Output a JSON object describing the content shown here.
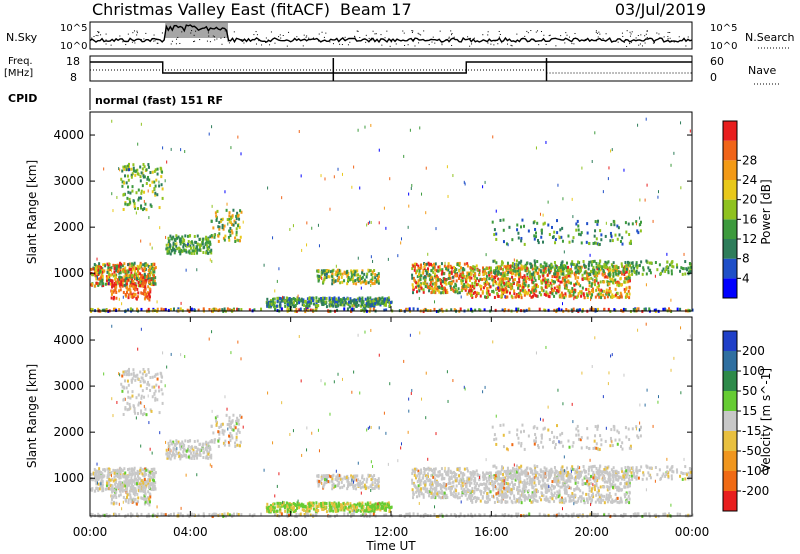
{
  "header": {
    "title": "Christmas Valley East (fitACF)",
    "beam": "Beam 17",
    "date": "03/Jul/2019"
  },
  "noise_panel": {
    "left_label": "N.Sky",
    "right_label": "N.Search",
    "left_ticks": [
      "10^5",
      "10^0"
    ],
    "right_ticks": [
      "10^5",
      "10^0"
    ]
  },
  "freq_panel": {
    "left_label": "Freq.",
    "left_unit": "[MHz]",
    "right_label": "Nave",
    "left_ticks": [
      "18",
      "8"
    ],
    "right_ticks": [
      "60",
      "0"
    ]
  },
  "cpid": {
    "label": "CPID",
    "value": "normal (fast) 151 RF"
  },
  "chart_data": [
    {
      "type": "heatmap",
      "name": "Power",
      "ylabel": "Slant Range [km]",
      "xlabel": "",
      "xlim": [
        "00:00",
        "00:00"
      ],
      "ylim": [
        180,
        4500
      ],
      "yticks": [
        "1000",
        "2000",
        "3000",
        "4000"
      ],
      "colorbar": {
        "label": "Power [dB]",
        "ticks": [
          "4",
          "8",
          "12",
          "16",
          "20",
          "24",
          "28"
        ],
        "colors": [
          "#0000ff",
          "#1f4fc8",
          "#2e7d5a",
          "#3d9a3d",
          "#8fc21f",
          "#e8c81a",
          "#f39a16",
          "#f06418",
          "#e81e1e"
        ]
      }
    },
    {
      "type": "heatmap",
      "name": "Velocity",
      "ylabel": "Slant Range [km]",
      "xlabel": "Time UT",
      "xlim": [
        "00:00",
        "00:00"
      ],
      "ylim": [
        180,
        4500
      ],
      "yticks": [
        "1000",
        "2000",
        "3000",
        "4000"
      ],
      "xticks": [
        "00:00",
        "04:00",
        "08:00",
        "12:00",
        "16:00",
        "20:00",
        "00:00"
      ],
      "colorbar": {
        "label": "Velocity [m s^-1]",
        "ticks": [
          "200",
          "100",
          "50",
          "15",
          "-15",
          "-50",
          "-100",
          "-200"
        ],
        "colors": [
          "#2040c8",
          "#2f6fa0",
          "#2e8a4a",
          "#66cc33",
          "#c8c8c8",
          "#e8c040",
          "#f0961e",
          "#f06a14",
          "#e81e1e"
        ]
      }
    }
  ]
}
